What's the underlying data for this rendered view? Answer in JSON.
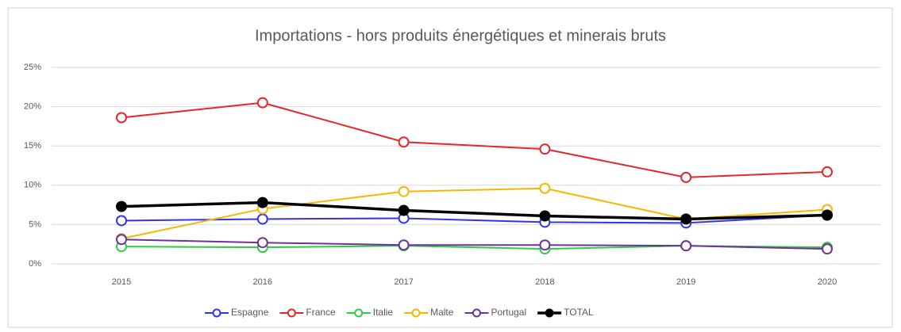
{
  "chart_data": {
    "type": "line",
    "title": "Importations - hors produits énergétiques et minerais bruts",
    "categories": [
      "2015",
      "2016",
      "2017",
      "2018",
      "2019",
      "2020"
    ],
    "series": [
      {
        "name": "Espagne",
        "color": "#3333ee",
        "values": [
          5.5,
          5.7,
          5.8,
          5.3,
          5.2,
          6.2
        ]
      },
      {
        "name": "France",
        "color": "#e8262a",
        "values": [
          18.6,
          20.5,
          15.5,
          14.6,
          11.0,
          11.7
        ]
      },
      {
        "name": "Italie",
        "color": "#2ecc40",
        "values": [
          2.2,
          2.1,
          2.3,
          1.9,
          2.3,
          2.1
        ]
      },
      {
        "name": "Malte",
        "color": "#f5b800",
        "values": [
          3.2,
          7.0,
          9.2,
          9.6,
          5.7,
          6.9
        ]
      },
      {
        "name": "Portugal",
        "color": "#7030a0",
        "values": [
          3.1,
          2.7,
          2.4,
          2.4,
          2.3,
          1.9
        ]
      },
      {
        "name": "TOTAL",
        "color": "#000000",
        "values": [
          7.3,
          7.8,
          6.8,
          6.1,
          5.7,
          6.2
        ]
      }
    ],
    "ylim": [
      0,
      25
    ],
    "yticks": [
      {
        "value": 0,
        "label": "0%"
      },
      {
        "value": 5,
        "label": "5%"
      },
      {
        "value": 10,
        "label": "10%"
      },
      {
        "value": 15,
        "label": "15%"
      },
      {
        "value": 20,
        "label": "20%"
      },
      {
        "value": 25,
        "label": "25%"
      }
    ],
    "grid": true,
    "legend": "bottom"
  }
}
